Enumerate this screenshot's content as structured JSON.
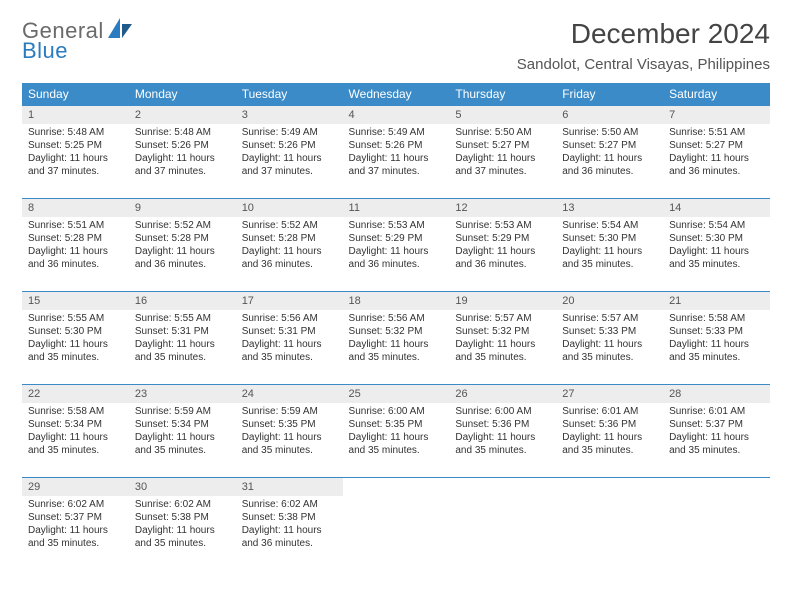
{
  "brand": {
    "line1": "General",
    "line2": "Blue"
  },
  "title": "December 2024",
  "location": "Sandolot, Central Visayas, Philippines",
  "colors": {
    "header_bg": "#3b8bc8",
    "header_fg": "#ffffff",
    "daynum_bg": "#ededed",
    "rule": "#3b8bc8",
    "brand_gray": "#6a6a6a",
    "brand_blue": "#2a7bbf"
  },
  "weekdays": [
    "Sunday",
    "Monday",
    "Tuesday",
    "Wednesday",
    "Thursday",
    "Friday",
    "Saturday"
  ],
  "grid": {
    "columns": 7,
    "rows": 5,
    "start_offset": 0,
    "days_in_month": 31
  },
  "days": [
    {
      "n": 1,
      "sunrise": "5:48 AM",
      "sunset": "5:25 PM",
      "dl": "11 hours and 37 minutes."
    },
    {
      "n": 2,
      "sunrise": "5:48 AM",
      "sunset": "5:26 PM",
      "dl": "11 hours and 37 minutes."
    },
    {
      "n": 3,
      "sunrise": "5:49 AM",
      "sunset": "5:26 PM",
      "dl": "11 hours and 37 minutes."
    },
    {
      "n": 4,
      "sunrise": "5:49 AM",
      "sunset": "5:26 PM",
      "dl": "11 hours and 37 minutes."
    },
    {
      "n": 5,
      "sunrise": "5:50 AM",
      "sunset": "5:27 PM",
      "dl": "11 hours and 37 minutes."
    },
    {
      "n": 6,
      "sunrise": "5:50 AM",
      "sunset": "5:27 PM",
      "dl": "11 hours and 36 minutes."
    },
    {
      "n": 7,
      "sunrise": "5:51 AM",
      "sunset": "5:27 PM",
      "dl": "11 hours and 36 minutes."
    },
    {
      "n": 8,
      "sunrise": "5:51 AM",
      "sunset": "5:28 PM",
      "dl": "11 hours and 36 minutes."
    },
    {
      "n": 9,
      "sunrise": "5:52 AM",
      "sunset": "5:28 PM",
      "dl": "11 hours and 36 minutes."
    },
    {
      "n": 10,
      "sunrise": "5:52 AM",
      "sunset": "5:28 PM",
      "dl": "11 hours and 36 minutes."
    },
    {
      "n": 11,
      "sunrise": "5:53 AM",
      "sunset": "5:29 PM",
      "dl": "11 hours and 36 minutes."
    },
    {
      "n": 12,
      "sunrise": "5:53 AM",
      "sunset": "5:29 PM",
      "dl": "11 hours and 36 minutes."
    },
    {
      "n": 13,
      "sunrise": "5:54 AM",
      "sunset": "5:30 PM",
      "dl": "11 hours and 35 minutes."
    },
    {
      "n": 14,
      "sunrise": "5:54 AM",
      "sunset": "5:30 PM",
      "dl": "11 hours and 35 minutes."
    },
    {
      "n": 15,
      "sunrise": "5:55 AM",
      "sunset": "5:30 PM",
      "dl": "11 hours and 35 minutes."
    },
    {
      "n": 16,
      "sunrise": "5:55 AM",
      "sunset": "5:31 PM",
      "dl": "11 hours and 35 minutes."
    },
    {
      "n": 17,
      "sunrise": "5:56 AM",
      "sunset": "5:31 PM",
      "dl": "11 hours and 35 minutes."
    },
    {
      "n": 18,
      "sunrise": "5:56 AM",
      "sunset": "5:32 PM",
      "dl": "11 hours and 35 minutes."
    },
    {
      "n": 19,
      "sunrise": "5:57 AM",
      "sunset": "5:32 PM",
      "dl": "11 hours and 35 minutes."
    },
    {
      "n": 20,
      "sunrise": "5:57 AM",
      "sunset": "5:33 PM",
      "dl": "11 hours and 35 minutes."
    },
    {
      "n": 21,
      "sunrise": "5:58 AM",
      "sunset": "5:33 PM",
      "dl": "11 hours and 35 minutes."
    },
    {
      "n": 22,
      "sunrise": "5:58 AM",
      "sunset": "5:34 PM",
      "dl": "11 hours and 35 minutes."
    },
    {
      "n": 23,
      "sunrise": "5:59 AM",
      "sunset": "5:34 PM",
      "dl": "11 hours and 35 minutes."
    },
    {
      "n": 24,
      "sunrise": "5:59 AM",
      "sunset": "5:35 PM",
      "dl": "11 hours and 35 minutes."
    },
    {
      "n": 25,
      "sunrise": "6:00 AM",
      "sunset": "5:35 PM",
      "dl": "11 hours and 35 minutes."
    },
    {
      "n": 26,
      "sunrise": "6:00 AM",
      "sunset": "5:36 PM",
      "dl": "11 hours and 35 minutes."
    },
    {
      "n": 27,
      "sunrise": "6:01 AM",
      "sunset": "5:36 PM",
      "dl": "11 hours and 35 minutes."
    },
    {
      "n": 28,
      "sunrise": "6:01 AM",
      "sunset": "5:37 PM",
      "dl": "11 hours and 35 minutes."
    },
    {
      "n": 29,
      "sunrise": "6:02 AM",
      "sunset": "5:37 PM",
      "dl": "11 hours and 35 minutes."
    },
    {
      "n": 30,
      "sunrise": "6:02 AM",
      "sunset": "5:38 PM",
      "dl": "11 hours and 35 minutes."
    },
    {
      "n": 31,
      "sunrise": "6:02 AM",
      "sunset": "5:38 PM",
      "dl": "11 hours and 36 minutes."
    }
  ],
  "labels": {
    "sunrise_prefix": "Sunrise: ",
    "sunset_prefix": "Sunset: ",
    "daylight_prefix": "Daylight: "
  }
}
